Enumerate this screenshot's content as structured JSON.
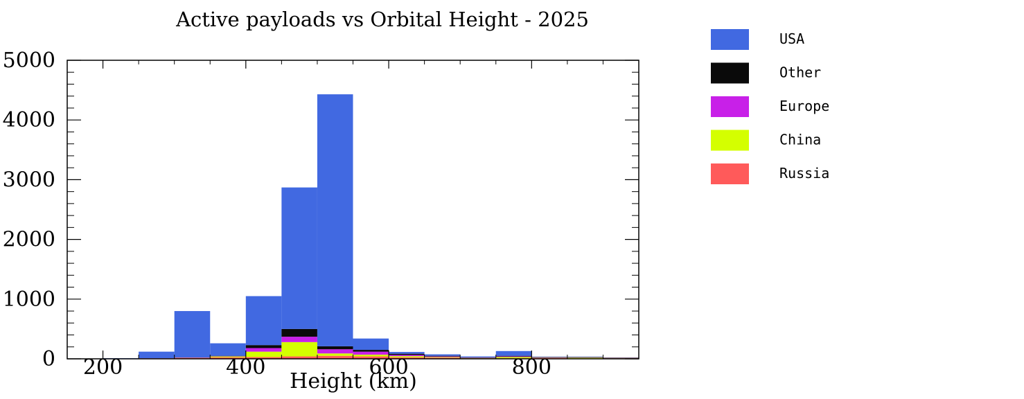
{
  "chart_data": {
    "type": "bar",
    "stacked": true,
    "title": "Active payloads vs Orbital Height - 2025",
    "xlabel": "Height (km)",
    "ylabel": "",
    "xlim": [
      150,
      950
    ],
    "ylim": [
      0,
      5000
    ],
    "x_ticks": [
      200,
      400,
      600,
      800
    ],
    "y_ticks": [
      0,
      1000,
      2000,
      3000,
      4000,
      5000
    ],
    "bin_edges": [
      150,
      200,
      250,
      300,
      350,
      400,
      450,
      500,
      550,
      600,
      650,
      700,
      750,
      800,
      850,
      900,
      950
    ],
    "grid": false,
    "legend_position": "right",
    "series": [
      {
        "name": "Russia",
        "color": "#ff5a5a",
        "values": [
          0,
          5,
          10,
          20,
          25,
          30,
          40,
          50,
          40,
          25,
          20,
          10,
          10,
          15,
          5,
          5
        ]
      },
      {
        "name": "China",
        "color": "#d4ff00",
        "values": [
          0,
          0,
          0,
          0,
          15,
          90,
          240,
          40,
          30,
          20,
          10,
          5,
          20,
          5,
          15,
          5
        ]
      },
      {
        "name": "Europe",
        "color": "#c820e8",
        "values": [
          0,
          0,
          0,
          0,
          5,
          60,
          90,
          70,
          50,
          20,
          10,
          5,
          10,
          5,
          5,
          5
        ]
      },
      {
        "name": "Other",
        "color": "#0a0a0a",
        "values": [
          0,
          0,
          0,
          0,
          5,
          50,
          130,
          50,
          30,
          20,
          10,
          5,
          10,
          5,
          5,
          5
        ]
      },
      {
        "name": "USA",
        "color": "#4169e1",
        "values": [
          0,
          5,
          110,
          780,
          210,
          820,
          2370,
          4220,
          190,
          30,
          25,
          15,
          80,
          5,
          5,
          0
        ]
      }
    ],
    "legend_order": [
      "USA",
      "Other",
      "Europe",
      "China",
      "Russia"
    ]
  }
}
